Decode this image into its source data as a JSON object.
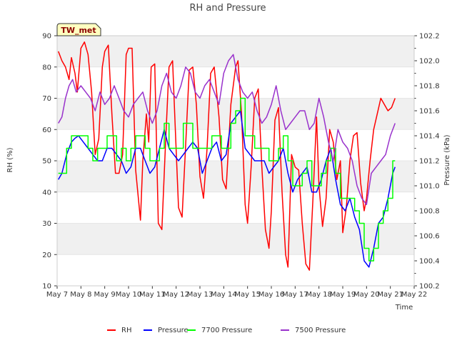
{
  "chart_data": {
    "type": "line",
    "title": "RH and Pressure",
    "xlabel": "Time",
    "ylabel_left": "RH (%)",
    "ylabel_right": "Pressure (kPa)",
    "site_badge": "TW_met",
    "x_tick_labels": [
      "May 7",
      "May 8",
      "May 9",
      "May 10",
      "May 11",
      "May 12",
      "May 13",
      "May 14",
      "May 15",
      "May 16",
      "May 17",
      "May 18",
      "May 19",
      "May 20",
      "May 21",
      "May 22"
    ],
    "xlim": [
      7,
      22
    ],
    "y_left_ticks": [
      "10",
      "20",
      "30",
      "40",
      "50",
      "60",
      "70",
      "80",
      "90"
    ],
    "ylim_left": [
      10,
      90
    ],
    "y_right_ticks": [
      "100.2",
      "100.4",
      "100.6",
      "100.8",
      "101.0",
      "101.2",
      "101.4",
      "101.6",
      "101.8",
      "102.0",
      "102.2"
    ],
    "ylim_right": [
      100.2,
      102.2
    ],
    "grid": "horizontal bands",
    "legend_position": "bottom-center",
    "series": [
      {
        "name": "RH",
        "color": "#ff0000",
        "axis": "left",
        "x": [
          7.05,
          7.2,
          7.35,
          7.5,
          7.6,
          7.75,
          7.85,
          8.0,
          8.15,
          8.3,
          8.45,
          8.6,
          8.75,
          8.9,
          9.0,
          9.15,
          9.3,
          9.45,
          9.6,
          9.75,
          9.9,
          10.0,
          10.15,
          10.3,
          10.5,
          10.6,
          10.75,
          10.85,
          10.95,
          11.1,
          11.25,
          11.4,
          11.55,
          11.7,
          11.85,
          11.95,
          12.1,
          12.25,
          12.4,
          12.55,
          12.7,
          12.85,
          13.0,
          13.15,
          13.3,
          13.45,
          13.6,
          13.8,
          13.95,
          14.1,
          14.3,
          14.5,
          14.6,
          14.75,
          14.9,
          15.0,
          15.15,
          15.3,
          15.45,
          15.6,
          15.75,
          15.9,
          16.0,
          16.15,
          16.3,
          16.45,
          16.6,
          16.7,
          16.85,
          17.0,
          17.15,
          17.3,
          17.45,
          17.6,
          17.75,
          17.9,
          18.0,
          18.15,
          18.3,
          18.45,
          18.6,
          18.75,
          18.9,
          19.0,
          19.15,
          19.3,
          19.45,
          19.6,
          19.75,
          19.9,
          20.0,
          20.15,
          20.3,
          20.45,
          20.6,
          20.75,
          20.9,
          21.05,
          21.2
        ],
        "values": [
          85,
          82,
          80,
          76,
          83,
          78,
          72,
          86,
          88,
          84,
          72,
          52,
          57,
          80,
          85,
          87,
          65,
          46,
          46,
          52,
          84,
          86,
          86,
          47,
          31,
          50,
          65,
          56,
          80,
          81,
          30,
          28,
          55,
          80,
          82,
          63,
          35,
          32,
          55,
          79,
          80,
          68,
          45,
          38,
          54,
          78,
          80,
          64,
          44,
          41,
          68,
          80,
          82,
          65,
          36,
          30,
          48,
          70,
          73,
          48,
          28,
          22,
          34,
          63,
          67,
          40,
          20,
          16,
          52,
          48,
          47,
          30,
          17,
          15,
          38,
          64,
          42,
          29,
          38,
          60,
          56,
          44,
          50,
          27,
          35,
          50,
          58,
          59,
          43,
          34,
          38,
          50,
          60,
          65,
          70,
          68,
          66,
          67,
          70
        ]
      },
      {
        "name": "Pressure",
        "color": "#0000ff",
        "axis": "right",
        "x": [
          7.05,
          7.2,
          7.4,
          7.6,
          7.75,
          7.9,
          8.1,
          8.3,
          8.5,
          8.7,
          8.9,
          9.1,
          9.3,
          9.5,
          9.7,
          9.9,
          10.1,
          10.3,
          10.5,
          10.7,
          10.9,
          11.1,
          11.3,
          11.5,
          11.7,
          11.9,
          12.1,
          12.3,
          12.5,
          12.7,
          12.9,
          13.1,
          13.3,
          13.5,
          13.7,
          13.9,
          14.1,
          14.3,
          14.5,
          14.7,
          14.9,
          15.1,
          15.3,
          15.5,
          15.7,
          15.9,
          16.1,
          16.3,
          16.5,
          16.7,
          16.9,
          17.1,
          17.3,
          17.5,
          17.7,
          17.9,
          18.1,
          18.3,
          18.5,
          18.7,
          18.9,
          19.1,
          19.3,
          19.5,
          19.7,
          19.9,
          20.1,
          20.3,
          20.5,
          20.7,
          20.9,
          21.1,
          21.2
        ],
        "values": [
          101.05,
          101.1,
          101.25,
          101.35,
          101.38,
          101.4,
          101.35,
          101.3,
          101.25,
          101.2,
          101.2,
          101.3,
          101.3,
          101.25,
          101.2,
          101.1,
          101.15,
          101.3,
          101.3,
          101.2,
          101.1,
          101.15,
          101.3,
          101.45,
          101.3,
          101.25,
          101.2,
          101.25,
          101.3,
          101.35,
          101.3,
          101.1,
          101.2,
          101.3,
          101.35,
          101.2,
          101.25,
          101.5,
          101.55,
          101.6,
          101.3,
          101.25,
          101.2,
          101.2,
          101.2,
          101.1,
          101.15,
          101.2,
          101.3,
          101.1,
          100.95,
          101.05,
          101.1,
          101.15,
          100.95,
          100.95,
          101.05,
          101.2,
          101.3,
          101.05,
          100.85,
          100.8,
          100.9,
          100.75,
          100.65,
          100.4,
          100.35,
          100.5,
          100.7,
          100.75,
          100.9,
          101.1,
          101.15
        ]
      },
      {
        "name": "7700 Pressure",
        "color": "#00ff00",
        "axis": "right",
        "x": [
          7.05,
          7.2,
          7.4,
          7.6,
          7.75,
          7.9,
          8.1,
          8.3,
          8.5,
          8.7,
          8.9,
          9.1,
          9.3,
          9.5,
          9.7,
          9.9,
          10.1,
          10.3,
          10.5,
          10.7,
          10.9,
          11.1,
          11.3,
          11.5,
          11.7,
          11.9,
          12.1,
          12.3,
          12.5,
          12.7,
          12.9,
          13.1,
          13.3,
          13.5,
          13.7,
          13.9,
          14.1,
          14.3,
          14.5,
          14.7,
          14.9,
          15.1,
          15.3,
          15.5,
          15.7,
          15.9,
          16.1,
          16.3,
          16.5,
          16.7,
          16.9,
          17.1,
          17.3,
          17.5,
          17.7,
          17.9,
          18.1,
          18.3,
          18.5,
          18.7,
          18.9,
          19.1,
          19.3,
          19.5,
          19.7,
          19.9,
          20.1,
          20.3,
          20.5,
          20.7,
          20.9,
          21.1,
          21.2
        ],
        "values": [
          101.1,
          101.1,
          101.3,
          101.4,
          101.4,
          101.4,
          101.4,
          101.3,
          101.2,
          101.3,
          101.3,
          101.4,
          101.4,
          101.2,
          101.3,
          101.2,
          101.3,
          101.4,
          101.4,
          101.3,
          101.2,
          101.2,
          101.3,
          101.5,
          101.3,
          101.3,
          101.3,
          101.5,
          101.5,
          101.3,
          101.3,
          101.3,
          101.3,
          101.4,
          101.4,
          101.3,
          101.3,
          101.5,
          101.6,
          101.7,
          101.4,
          101.4,
          101.3,
          101.3,
          101.3,
          101.2,
          101.2,
          101.3,
          101.4,
          101.2,
          101.0,
          101.0,
          101.1,
          101.2,
          101.0,
          101.0,
          101.1,
          101.2,
          101.3,
          101.1,
          100.9,
          100.9,
          100.9,
          100.8,
          100.7,
          100.5,
          100.4,
          100.5,
          100.7,
          100.8,
          100.9,
          101.2,
          101.2
        ]
      },
      {
        "name": "7500 Pressure",
        "color": "#9932cc",
        "axis": "right",
        "x": [
          7.05,
          7.2,
          7.35,
          7.5,
          7.65,
          7.8,
          8.0,
          8.2,
          8.4,
          8.6,
          8.8,
          9.0,
          9.2,
          9.4,
          9.6,
          9.8,
          10.0,
          10.2,
          10.4,
          10.6,
          10.8,
          11.0,
          11.2,
          11.4,
          11.6,
          11.8,
          12.0,
          12.2,
          12.4,
          12.6,
          12.8,
          13.0,
          13.2,
          13.4,
          13.6,
          13.8,
          14.0,
          14.2,
          14.4,
          14.6,
          14.8,
          15.0,
          15.2,
          15.4,
          15.6,
          15.8,
          16.0,
          16.2,
          16.4,
          16.6,
          16.8,
          17.0,
          17.2,
          17.4,
          17.6,
          17.8,
          18.0,
          18.2,
          18.4,
          18.6,
          18.8,
          19.0,
          19.2,
          19.4,
          19.6,
          19.8,
          20.0,
          20.2,
          20.4,
          20.6,
          20.8,
          21.0,
          21.2
        ],
        "values": [
          101.5,
          101.55,
          101.7,
          101.8,
          101.85,
          101.75,
          101.8,
          101.75,
          101.7,
          101.6,
          101.75,
          101.65,
          101.7,
          101.8,
          101.7,
          101.6,
          101.55,
          101.65,
          101.7,
          101.75,
          101.6,
          101.5,
          101.6,
          101.8,
          101.9,
          101.75,
          101.7,
          101.8,
          101.95,
          101.9,
          101.75,
          101.7,
          101.8,
          101.85,
          101.75,
          101.65,
          101.9,
          102.0,
          102.05,
          101.85,
          101.75,
          101.7,
          101.75,
          101.6,
          101.5,
          101.55,
          101.65,
          101.8,
          101.6,
          101.45,
          101.5,
          101.55,
          101.6,
          101.6,
          101.45,
          101.5,
          101.7,
          101.55,
          101.35,
          101.2,
          101.45,
          101.35,
          101.3,
          101.2,
          101.0,
          100.9,
          100.85,
          101.1,
          101.15,
          101.2,
          101.25,
          101.4,
          101.5
        ]
      }
    ]
  }
}
